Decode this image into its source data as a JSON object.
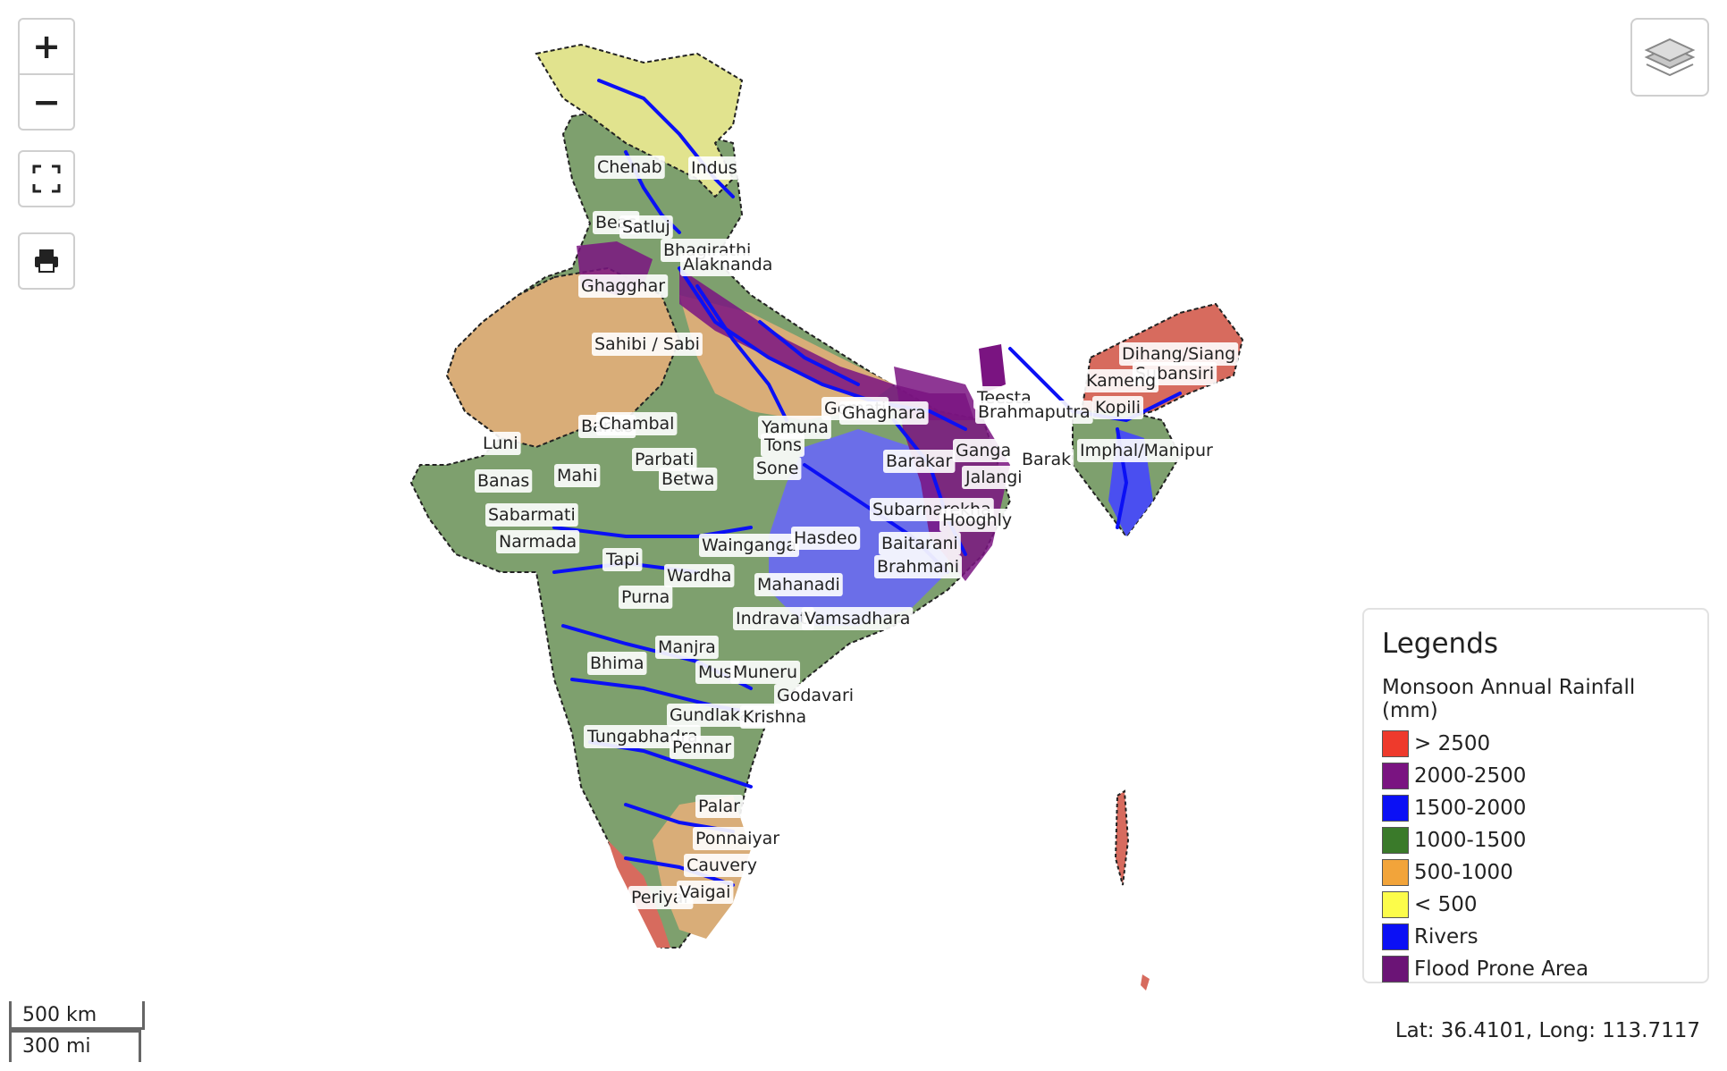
{
  "controls": {
    "zoom_in": "+",
    "zoom_out": "−",
    "fullscreen_icon": "fullscreen-icon",
    "print_icon": "printer-icon",
    "layers_icon": "layers-icon"
  },
  "legend": {
    "title": "Legends",
    "subtitle": "Monsoon Annual Rainfall (mm)",
    "items": [
      {
        "label": "> 2500",
        "color": "#ee3a2c"
      },
      {
        "label": "2000-2500",
        "color": "#7a1481"
      },
      {
        "label": "1500-2000",
        "color": "#0b10f5"
      },
      {
        "label": "1000-1500",
        "color": "#3a7a2a"
      },
      {
        "label": "500-1000",
        "color": "#f2a43a"
      },
      {
        "label": "< 500",
        "color": "#fcfc4a"
      },
      {
        "label": "Rivers",
        "color": "#0b10f5"
      },
      {
        "label": "Flood Prone Area",
        "color": "#6b1476"
      }
    ]
  },
  "scale": {
    "km": "500 km",
    "mi": "300 mi"
  },
  "coordinates": "Lat: 36.4101, Long: 113.7117",
  "river_labels": [
    "Chenab",
    "Indus",
    "Beas",
    "Satluj",
    "Bhagirathi",
    "Alaknanda",
    "Ghagghar",
    "Sahibi / Sabi",
    "Dihang/Siang",
    "Subansiri",
    "Kameng",
    "Teesta",
    "Brahmaputra",
    "Kopili",
    "Gomati",
    "Ghaghara",
    "Banas",
    "Chambal",
    "Luni",
    "Parbati",
    "Yamuna",
    "Tons",
    "Sone",
    "Barakar",
    "Ganga",
    "Jalangi",
    "Barak",
    "Imphal/Manipur",
    "Banas",
    "Mahi",
    "Betwa",
    "Subarnarekha",
    "Hooghly",
    "Sabarmati",
    "Narmada",
    "Tapi",
    "Wainganga",
    "Hasdeo",
    "Baitarani",
    "Brahmani",
    "Wardha",
    "Mahanadi",
    "Purna",
    "Indravati",
    "Vamsadhara",
    "Manjra",
    "Bhima",
    "Musi",
    "Muneru",
    "Godavari",
    "Gundlakamma",
    "Krishna",
    "Tungabhadra",
    "Pennar",
    "Palar",
    "Ponnaiyar",
    "Cauvery",
    "Periyar",
    "Vaigai"
  ]
}
